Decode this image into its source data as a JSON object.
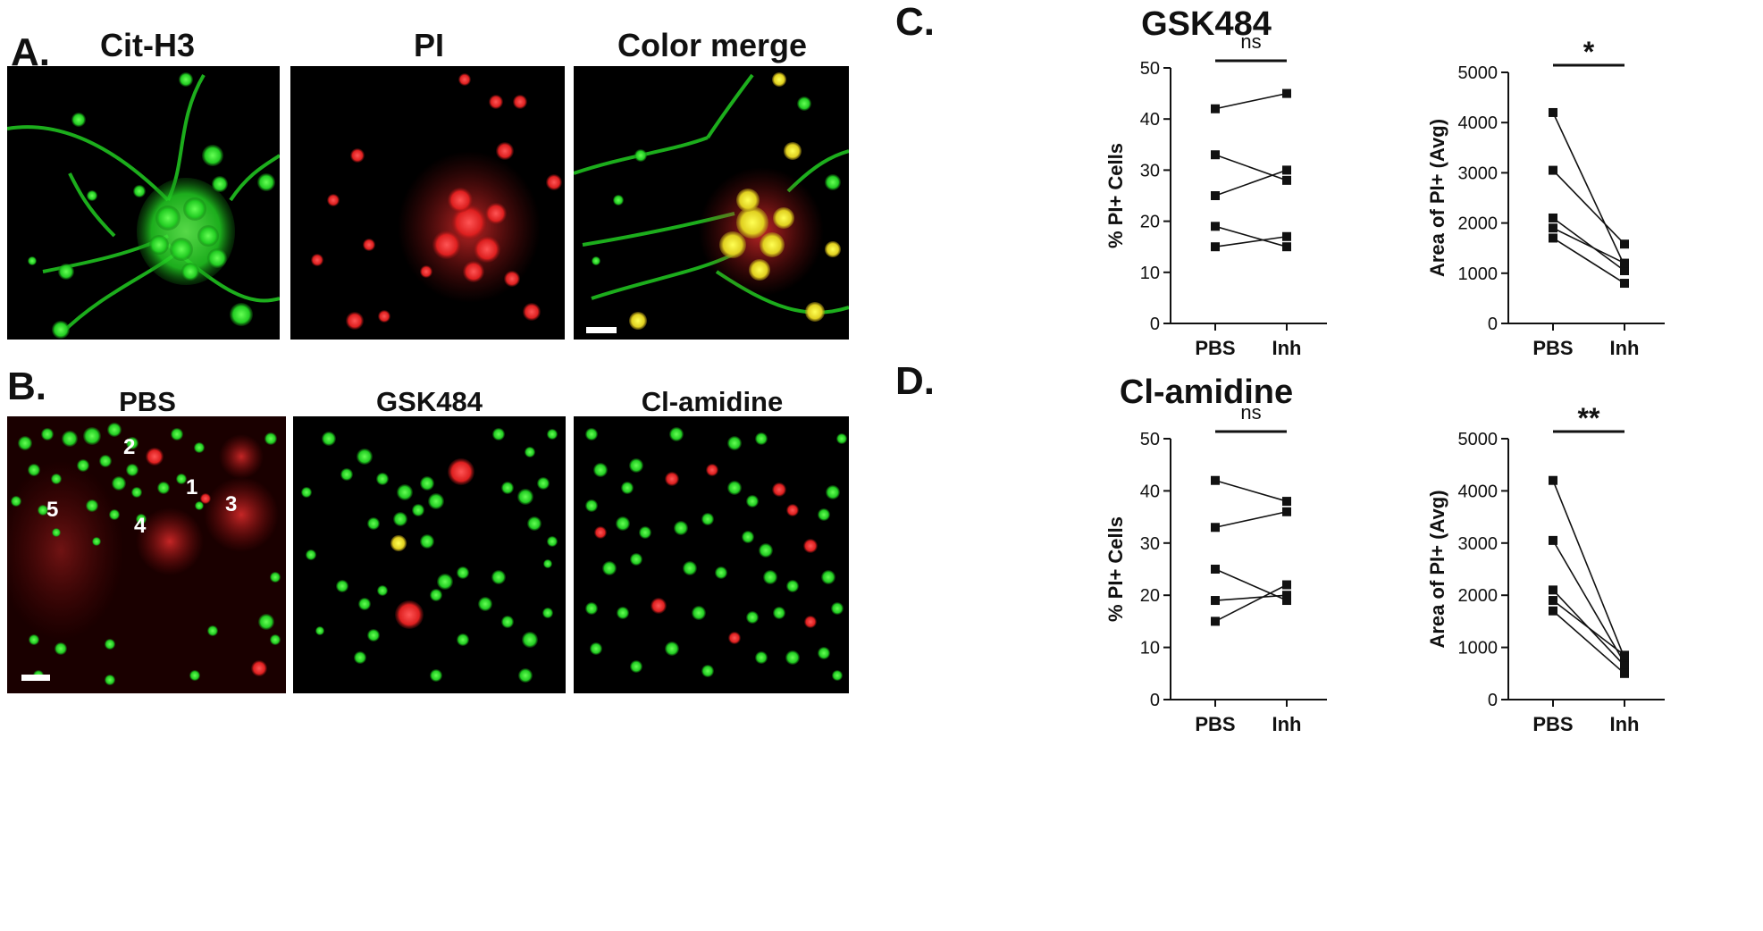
{
  "panel_a": {
    "letter": "A.",
    "images": [
      {
        "title": "Cit-H3",
        "color": "#22dd22"
      },
      {
        "title": "PI",
        "color": "#ee2222"
      },
      {
        "title": "Color merge",
        "color": "#e8e020"
      }
    ]
  },
  "panel_b": {
    "letter": "B.",
    "images": [
      {
        "title": "PBS",
        "labels": [
          "1",
          "2",
          "3",
          "4",
          "5"
        ]
      },
      {
        "title": "GSK484"
      },
      {
        "title": "Cl-amidine"
      }
    ]
  },
  "panel_c": {
    "letter": "C.",
    "title": "GSK484"
  },
  "panel_d": {
    "letter": "D.",
    "title": "Cl-amidine"
  },
  "chart_data": [
    {
      "type": "line",
      "panel": "C",
      "categories": [
        "PBS",
        "Inh"
      ],
      "ylabel": "% PI+ Cells",
      "ylim": [
        0,
        50
      ],
      "yticks": [
        0,
        10,
        20,
        30,
        40,
        50
      ],
      "significance": "ns",
      "pairs": [
        [
          42,
          45
        ],
        [
          33,
          28
        ],
        [
          25,
          30
        ],
        [
          19,
          15
        ],
        [
          15,
          17
        ]
      ]
    },
    {
      "type": "line",
      "panel": "C",
      "categories": [
        "PBS",
        "Inh"
      ],
      "ylabel": "Area of PI+ (Avg)",
      "ylim": [
        0,
        5000
      ],
      "yticks": [
        0,
        1000,
        2000,
        3000,
        4000,
        5000
      ],
      "significance": "*",
      "pairs": [
        [
          4200,
          1150
        ],
        [
          3050,
          1580
        ],
        [
          2100,
          1050
        ],
        [
          1900,
          1200
        ],
        [
          1700,
          800
        ]
      ]
    },
    {
      "type": "line",
      "panel": "D",
      "categories": [
        "PBS",
        "Inh"
      ],
      "ylabel": "% PI+ Cells",
      "ylim": [
        0,
        50
      ],
      "yticks": [
        0,
        10,
        20,
        30,
        40,
        50
      ],
      "significance": "ns",
      "pairs": [
        [
          42,
          38
        ],
        [
          33,
          36
        ],
        [
          25,
          19
        ],
        [
          19,
          20
        ],
        [
          15,
          22
        ]
      ]
    },
    {
      "type": "line",
      "panel": "D",
      "categories": [
        "PBS",
        "Inh"
      ],
      "ylabel": "Area of PI+ (Avg)",
      "ylim": [
        0,
        5000
      ],
      "yticks": [
        0,
        1000,
        2000,
        3000,
        4000,
        5000
      ],
      "significance": "**",
      "pairs": [
        [
          4200,
          800
        ],
        [
          3050,
          700
        ],
        [
          2100,
          650
        ],
        [
          1900,
          850
        ],
        [
          1700,
          500
        ]
      ]
    }
  ]
}
